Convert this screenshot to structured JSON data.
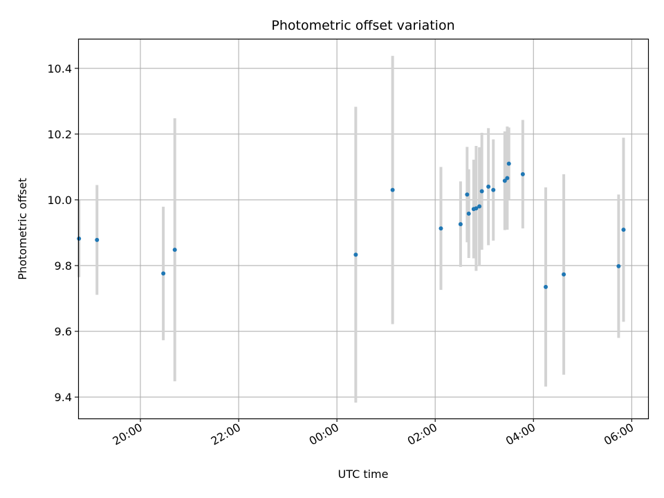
{
  "chart_data": {
    "type": "scatter",
    "title": "Photometric offset variation",
    "xlabel": "UTC time",
    "ylabel": "Photometric offset",
    "x_axis_type": "time",
    "x_range": [
      "18:44",
      "06:20"
    ],
    "x_ticks": [
      "20:00",
      "22:00",
      "00:00",
      "02:00",
      "04:00",
      "06:00"
    ],
    "ylim": [
      9.335,
      10.49
    ],
    "y_ticks": [
      9.4,
      9.6,
      9.8,
      10.0,
      10.2,
      10.4
    ],
    "y_tick_labels": [
      "9.4",
      "9.6",
      "9.8",
      "10.0",
      "10.2",
      "10.4"
    ],
    "grid": true,
    "point_color": "#1f77b4",
    "errorbar_color": "#d3d3d3",
    "series": [
      {
        "points": [
          {
            "x": "18:45",
            "y": 9.882,
            "err": 0.117
          },
          {
            "x": "19:07",
            "y": 9.878,
            "err": 0.167
          },
          {
            "x": "20:28",
            "y": 9.776,
            "err": 0.203
          },
          {
            "x": "20:42",
            "y": 9.848,
            "err": 0.4
          },
          {
            "x": "00:23",
            "y": 9.833,
            "err": 0.45
          },
          {
            "x": "01:08",
            "y": 10.03,
            "err": 0.408
          },
          {
            "x": "02:07",
            "y": 9.913,
            "err": 0.187
          },
          {
            "x": "02:31",
            "y": 9.926,
            "err": 0.13
          },
          {
            "x": "02:39",
            "y": 10.016,
            "err": 0.145
          },
          {
            "x": "02:41",
            "y": 9.958,
            "err": 0.135
          },
          {
            "x": "02:47",
            "y": 9.972,
            "err": 0.15
          },
          {
            "x": "02:50",
            "y": 9.974,
            "err": 0.19
          },
          {
            "x": "02:54",
            "y": 9.98,
            "err": 0.18
          },
          {
            "x": "02:57",
            "y": 10.026,
            "err": 0.178
          },
          {
            "x": "03:05",
            "y": 10.04,
            "err": 0.178
          },
          {
            "x": "03:11",
            "y": 10.03,
            "err": 0.154
          },
          {
            "x": "03:25",
            "y": 10.058,
            "err": 0.15
          },
          {
            "x": "03:28",
            "y": 10.066,
            "err": 0.157
          },
          {
            "x": "03:30",
            "y": 10.11,
            "err": 0.11
          },
          {
            "x": "03:47",
            "y": 10.078,
            "err": 0.165
          },
          {
            "x": "04:15",
            "y": 9.735,
            "err": 0.303
          },
          {
            "x": "04:37",
            "y": 9.773,
            "err": 0.305
          },
          {
            "x": "05:44",
            "y": 9.798,
            "err": 0.218
          },
          {
            "x": "05:50",
            "y": 9.909,
            "err": 0.28
          }
        ]
      }
    ]
  }
}
